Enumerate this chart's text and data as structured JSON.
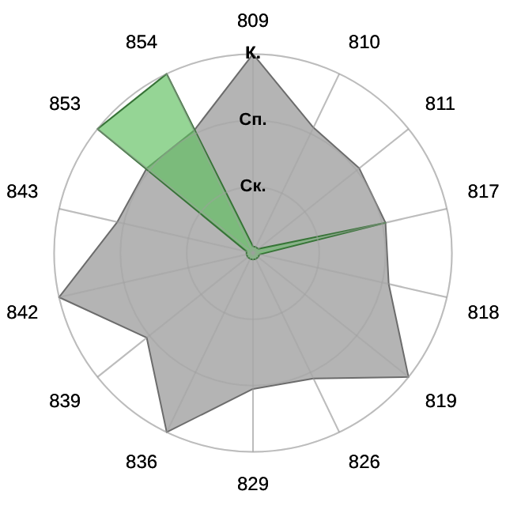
{
  "chart_data": {
    "type": "radar",
    "categories": [
      "809",
      "810",
      "811",
      "817",
      "818",
      "819",
      "826",
      "829",
      "836",
      "839",
      "842",
      "843",
      "853",
      "854"
    ],
    "series": [
      {
        "color": "#b4b4b4",
        "values": [
          3,
          2.1,
          2.05,
          2.05,
          2.1,
          3,
          2.1,
          2.05,
          3,
          2.05,
          3,
          2.1,
          2.05,
          2.05
        ]
      },
      {
        "color": "#5cbf5c",
        "values": [
          0.1,
          0.1,
          0.1,
          2.05,
          0.1,
          0.1,
          0.1,
          0.1,
          0.1,
          0.1,
          0.1,
          0.1,
          3,
          3
        ]
      }
    ],
    "ylim": [
      0,
      3
    ],
    "yticks": [
      {
        "value": 1,
        "label": "Ск."
      },
      {
        "value": 2,
        "label": "Сп."
      },
      {
        "value": 3,
        "label": "К."
      }
    ],
    "grid": true,
    "marker": "none"
  }
}
